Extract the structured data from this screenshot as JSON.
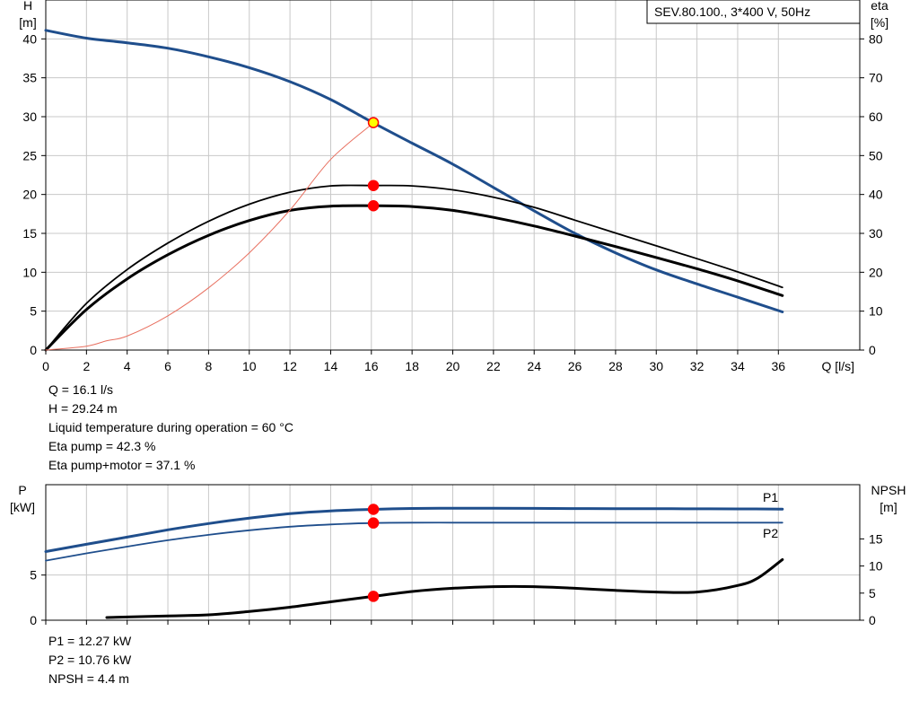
{
  "chart_data": [
    {
      "type": "line",
      "legend": "SEV.80.100., 3*400 V, 50Hz",
      "xlabel": "Q [l/s]",
      "ylabel_left": [
        "H",
        "[m]"
      ],
      "ylabel_right": [
        "eta",
        "[%]"
      ],
      "xlim": [
        0,
        40
      ],
      "ylim_left": [
        0,
        45
      ],
      "ylim_right": [
        0,
        90
      ],
      "x_ticks": [
        0,
        2,
        4,
        6,
        8,
        10,
        12,
        14,
        16,
        18,
        20,
        22,
        24,
        26,
        28,
        30,
        32,
        34,
        36
      ],
      "y_ticks_left": [
        0,
        5,
        10,
        15,
        20,
        25,
        30,
        35,
        40
      ],
      "y_ticks_right": [
        0,
        10,
        20,
        30,
        40,
        50,
        60,
        70,
        80
      ],
      "grid": true,
      "series": [
        {
          "axis": "left",
          "color": "#1f4e8c",
          "width": 3,
          "points": [
            [
              0,
              41.1
            ],
            [
              2,
              40.1
            ],
            [
              4,
              39.5
            ],
            [
              6,
              38.8
            ],
            [
              8,
              37.7
            ],
            [
              10,
              36.3
            ],
            [
              12,
              34.5
            ],
            [
              14,
              32.2
            ],
            [
              16.1,
              29.2
            ],
            [
              18,
              26.6
            ],
            [
              20,
              23.9
            ],
            [
              22,
              20.9
            ],
            [
              24,
              17.9
            ],
            [
              26,
              15.0
            ],
            [
              28,
              12.5
            ],
            [
              30,
              10.3
            ],
            [
              32,
              8.5
            ],
            [
              34,
              6.8
            ],
            [
              36.2,
              4.9
            ]
          ]
        },
        {
          "axis": "right",
          "color": "#000000",
          "width": 1.8,
          "points": [
            [
              0,
              0
            ],
            [
              2,
              12
            ],
            [
              4,
              20.7
            ],
            [
              6,
              27.5
            ],
            [
              8,
              33.1
            ],
            [
              10,
              37.5
            ],
            [
              12,
              40.6
            ],
            [
              14,
              42.2
            ],
            [
              16.1,
              42.3
            ],
            [
              18,
              42.2
            ],
            [
              20,
              41.2
            ],
            [
              22,
              39.3
            ],
            [
              24,
              36.7
            ],
            [
              26,
              33.4
            ],
            [
              28,
              30.1
            ],
            [
              30,
              26.8
            ],
            [
              32,
              23.5
            ],
            [
              34,
              20.1
            ],
            [
              36.2,
              16.1
            ]
          ]
        },
        {
          "axis": "right",
          "color": "#000000",
          "width": 3,
          "points": [
            [
              0,
              0
            ],
            [
              2,
              10.4
            ],
            [
              4,
              18.3
            ],
            [
              6,
              24.5
            ],
            [
              8,
              29.5
            ],
            [
              10,
              33.3
            ],
            [
              12,
              35.9
            ],
            [
              14,
              37.0
            ],
            [
              16.1,
              37.1
            ],
            [
              18,
              36.9
            ],
            [
              20,
              35.9
            ],
            [
              22,
              34.1
            ],
            [
              24,
              31.9
            ],
            [
              26,
              29.3
            ],
            [
              28,
              26.6
            ],
            [
              30,
              23.8
            ],
            [
              32,
              20.9
            ],
            [
              34,
              17.8
            ],
            [
              36.2,
              14.0
            ]
          ]
        },
        {
          "axis": "left",
          "color": "#e87060",
          "width": 1,
          "points": [
            [
              0,
              0
            ],
            [
              2,
              0.5
            ],
            [
              3,
              1.2
            ],
            [
              4,
              1.8
            ],
            [
              6,
              4.4
            ],
            [
              8,
              8
            ],
            [
              10,
              12.5
            ],
            [
              12,
              18
            ],
            [
              14,
              24.5
            ],
            [
              16.1,
              29.2
            ]
          ]
        }
      ],
      "markers": [
        {
          "axis": "left",
          "x": 16.1,
          "y": 29.24,
          "fill": "#ffff00",
          "stroke": "#ff0000"
        },
        {
          "axis": "right",
          "x": 16.1,
          "y": 42.3,
          "fill": "#ff0000",
          "stroke": "#ff0000"
        },
        {
          "axis": "right",
          "x": 16.1,
          "y": 37.1,
          "fill": "#ff0000",
          "stroke": "#ff0000"
        }
      ]
    },
    {
      "type": "line",
      "ylabel_left": [
        "P",
        "[kW]"
      ],
      "ylabel_right": [
        "NPSH",
        "[m]"
      ],
      "xlim": [
        0,
        40
      ],
      "ylim_left": [
        0,
        15
      ],
      "ylim_right": [
        0,
        25
      ],
      "x_ticks": [
        0,
        2,
        4,
        6,
        8,
        10,
        12,
        14,
        16,
        18,
        20,
        22,
        24,
        26,
        28,
        30,
        32,
        34,
        36
      ],
      "y_ticks_left": [
        0,
        5
      ],
      "y_ticks_right": [
        0,
        5,
        10,
        15
      ],
      "grid": true,
      "series": [
        {
          "name": "P1",
          "axis": "left",
          "color": "#1f4e8c",
          "width": 3,
          "points": [
            [
              0,
              7.6
            ],
            [
              2,
              8.4
            ],
            [
              4,
              9.2
            ],
            [
              6,
              10.0
            ],
            [
              8,
              10.7
            ],
            [
              10,
              11.3
            ],
            [
              12,
              11.8
            ],
            [
              14,
              12.1
            ],
            [
              16.1,
              12.27
            ],
            [
              18,
              12.37
            ],
            [
              20,
              12.4
            ],
            [
              22,
              12.4
            ],
            [
              24,
              12.38
            ],
            [
              26,
              12.36
            ],
            [
              28,
              12.35
            ],
            [
              30,
              12.34
            ],
            [
              32,
              12.33
            ],
            [
              34,
              12.32
            ],
            [
              36.2,
              12.3
            ]
          ]
        },
        {
          "name": "P2",
          "axis": "left",
          "color": "#1f4e8c",
          "width": 1.8,
          "points": [
            [
              0,
              6.6
            ],
            [
              2,
              7.4
            ],
            [
              4,
              8.15
            ],
            [
              6,
              8.85
            ],
            [
              8,
              9.45
            ],
            [
              10,
              9.95
            ],
            [
              12,
              10.35
            ],
            [
              14,
              10.6
            ],
            [
              16.1,
              10.76
            ],
            [
              18,
              10.8
            ],
            [
              20,
              10.8
            ],
            [
              22,
              10.8
            ],
            [
              24,
              10.8
            ],
            [
              26,
              10.8
            ],
            [
              28,
              10.8
            ],
            [
              30,
              10.8
            ],
            [
              32,
              10.8
            ],
            [
              34,
              10.8
            ],
            [
              36.2,
              10.8
            ]
          ]
        },
        {
          "axis": "right",
          "color": "#000000",
          "width": 3,
          "points": [
            [
              3,
              0.5
            ],
            [
              6,
              0.8
            ],
            [
              8,
              1.0
            ],
            [
              10,
              1.6
            ],
            [
              12,
              2.4
            ],
            [
              14,
              3.4
            ],
            [
              16.1,
              4.4
            ],
            [
              18,
              5.3
            ],
            [
              20,
              5.9
            ],
            [
              22,
              6.2
            ],
            [
              24,
              6.2
            ],
            [
              26,
              5.9
            ],
            [
              28,
              5.5
            ],
            [
              30,
              5.2
            ],
            [
              32,
              5.2
            ],
            [
              34,
              6.4
            ],
            [
              35,
              7.8
            ],
            [
              36.2,
              11.2
            ]
          ]
        }
      ],
      "markers": [
        {
          "axis": "left",
          "x": 16.1,
          "y": 12.27,
          "fill": "#ff0000",
          "stroke": "#ff0000"
        },
        {
          "axis": "left",
          "x": 16.1,
          "y": 10.76,
          "fill": "#ff0000",
          "stroke": "#ff0000"
        },
        {
          "axis": "right",
          "x": 16.1,
          "y": 4.4,
          "fill": "#ff0000",
          "stroke": "#ff0000"
        }
      ]
    }
  ],
  "info_top": [
    "Q = 16.1 l/s",
    "H = 29.24 m",
    "Liquid temperature during operation = 60 °C",
    "Eta pump = 42.3 %",
    "Eta pump+motor = 37.1 %"
  ],
  "info_bottom": [
    "P1 = 12.27 kW",
    "P2 = 10.76 kW",
    "NPSH = 4.4 m"
  ]
}
